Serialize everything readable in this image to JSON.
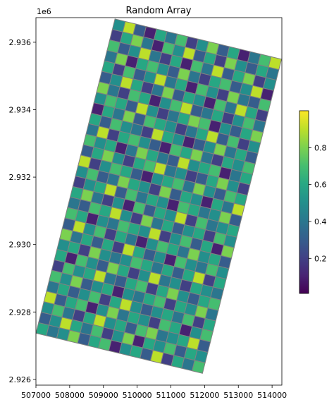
{
  "chart_data": {
    "type": "heatmap",
    "title": "Random Array",
    "y_offset_label": "1e6",
    "grid_corners": [
      [
        509343,
        2936690
      ],
      [
        514280,
        2935498
      ],
      [
        507000,
        2927372
      ]
    ],
    "xlim": [
      507000,
      514290
    ],
    "ylim": [
      2925830,
      2936730
    ],
    "xticks": [
      507000,
      508000,
      509000,
      510000,
      511000,
      512000,
      513000,
      514000
    ],
    "yticks": [
      {
        "value": 2926000,
        "label": "2.926"
      },
      {
        "value": 2928000,
        "label": "2.928"
      },
      {
        "value": 2930000,
        "label": "2.930"
      },
      {
        "value": 2932000,
        "label": "2.932"
      },
      {
        "value": 2934000,
        "label": "2.934"
      },
      {
        "value": 2936000,
        "label": "2.936"
      }
    ],
    "clim": [
      0.01,
      1.0
    ],
    "cticks": [
      0.2,
      0.4,
      0.6,
      0.8
    ],
    "colormap": "viridis",
    "edgecolor": "#808080",
    "values": [
      [
        0.5,
        0.9,
        0.3,
        0.1,
        0.6,
        0.4,
        0.7,
        0.2,
        0.5,
        0.8,
        0.3,
        0.6,
        0.1,
        0.4,
        0.7,
        0.9
      ],
      [
        0.2,
        0.6,
        0.8,
        0.4,
        0.1,
        0.7,
        0.5,
        0.9,
        0.3,
        0.6,
        0.2,
        0.8,
        0.5,
        0.3,
        0.6,
        0.4
      ],
      [
        0.7,
        0.3,
        0.5,
        0.9,
        0.4,
        0.2,
        0.6,
        0.1,
        0.7,
        0.4,
        0.9,
        0.3,
        0.6,
        0.8,
        0.2,
        0.5
      ],
      [
        0.4,
        0.8,
        0.1,
        0.6,
        0.7,
        0.5,
        0.3,
        0.8,
        0.4,
        0.2,
        0.6,
        0.7,
        0.3,
        0.5,
        0.9,
        0.1
      ],
      [
        0.6,
        0.2,
        0.7,
        0.3,
        0.5,
        0.9,
        0.4,
        0.6,
        0.1,
        0.7,
        0.5,
        0.2,
        0.8,
        0.4,
        0.3,
        0.7
      ],
      [
        0.3,
        0.5,
        0.9,
        0.6,
        0.2,
        0.4,
        0.8,
        0.3,
        0.6,
        0.5,
        0.1,
        0.7,
        0.4,
        0.9,
        0.6,
        0.2
      ],
      [
        0.8,
        0.4,
        0.2,
        0.7,
        0.6,
        0.1,
        0.5,
        0.7,
        0.9,
        0.3,
        0.4,
        0.6,
        0.2,
        0.5,
        0.7,
        0.4
      ],
      [
        0.5,
        0.7,
        0.6,
        0.3,
        0.9,
        0.5,
        0.2,
        0.4,
        0.6,
        0.8,
        0.7,
        0.1,
        0.5,
        0.3,
        0.6,
        0.8
      ],
      [
        0.1,
        0.6,
        0.4,
        0.8,
        0.3,
        0.7,
        0.6,
        0.5,
        0.2,
        0.4,
        0.6,
        0.9,
        0.3,
        0.7,
        0.2,
        0.5
      ],
      [
        0.6,
        0.3,
        0.7,
        0.5,
        0.4,
        0.2,
        0.9,
        0.6,
        0.5,
        0.1,
        0.3,
        0.5,
        0.8,
        0.4,
        0.6,
        0.3
      ],
      [
        0.4,
        0.9,
        0.2,
        0.6,
        0.7,
        0.5,
        0.3,
        0.1,
        0.7,
        0.6,
        0.8,
        0.4,
        0.2,
        0.6,
        0.5,
        0.7
      ],
      [
        0.7,
        0.5,
        0.6,
        0.1,
        0.4,
        0.8,
        0.6,
        0.4,
        0.3,
        0.9,
        0.5,
        0.6,
        0.7,
        0.1,
        0.4,
        0.6
      ],
      [
        0.3,
        0.6,
        0.8,
        0.5,
        0.2,
        0.6,
        0.7,
        0.9,
        0.4,
        0.5,
        0.2,
        0.3,
        0.6,
        0.8,
        0.5,
        0.2
      ],
      [
        0.9,
        0.2,
        0.5,
        0.7,
        0.6,
        0.3,
        0.1,
        0.5,
        0.6,
        0.7,
        0.4,
        0.8,
        0.5,
        0.3,
        0.7,
        0.6
      ],
      [
        0.5,
        0.7,
        0.3,
        0.4,
        0.8,
        0.6,
        0.5,
        0.2,
        0.8,
        0.3,
        0.6,
        0.5,
        0.1,
        0.6,
        0.4,
        0.9
      ],
      [
        0.2,
        0.5,
        0.6,
        0.9,
        0.3,
        0.7,
        0.4,
        0.6,
        0.5,
        0.1,
        0.7,
        0.6,
        0.4,
        0.5,
        0.8,
        0.3
      ],
      [
        0.6,
        0.8,
        0.4,
        0.2,
        0.5,
        0.1,
        0.7,
        0.3,
        0.6,
        0.5,
        0.9,
        0.2,
        0.7,
        0.4,
        0.5,
        0.6
      ],
      [
        0.4,
        0.3,
        0.7,
        0.6,
        0.9,
        0.5,
        0.2,
        0.8,
        0.4,
        0.6,
        0.3,
        0.5,
        0.6,
        0.2,
        0.7,
        0.5
      ],
      [
        0.7,
        0.6,
        0.1,
        0.5,
        0.4,
        0.7,
        0.6,
        0.5,
        0.9,
        0.2,
        0.5,
        0.7,
        0.3,
        0.6,
        0.1,
        0.8
      ],
      [
        0.3,
        0.9,
        0.5,
        0.7,
        0.2,
        0.6,
        0.4,
        0.1,
        0.5,
        0.7,
        0.6,
        0.4,
        0.8,
        0.5,
        0.6,
        0.3
      ],
      [
        0.8,
        0.4,
        0.6,
        0.3,
        0.6,
        0.2,
        0.9,
        0.6,
        0.3,
        0.5,
        0.1,
        0.7,
        0.5,
        0.4,
        0.7,
        0.5
      ],
      [
        0.5,
        0.6,
        0.2,
        0.8,
        0.5,
        0.4,
        0.5,
        0.7,
        0.6,
        0.4,
        0.6,
        0.3,
        0.6,
        0.9,
        0.2,
        0.6
      ],
      [
        0.6,
        0.1,
        0.7,
        0.5,
        0.3,
        0.8,
        0.6,
        0.2,
        0.5,
        0.9,
        0.4,
        0.5,
        0.2,
        0.6,
        0.5,
        0.4
      ],
      [
        0.2,
        0.7,
        0.5,
        0.6,
        0.9,
        0.4,
        0.3,
        0.6,
        0.7,
        0.2,
        0.6,
        0.8,
        0.5,
        0.3,
        0.6,
        0.7
      ],
      [
        0.7,
        0.5,
        0.8,
        0.3,
        0.5,
        0.6,
        0.1,
        0.5,
        0.4,
        0.6,
        0.7,
        0.2,
        0.6,
        0.5,
        0.8,
        0.4
      ],
      [
        0.4,
        0.6,
        0.3,
        0.5,
        0.7,
        0.2,
        0.6,
        0.9,
        0.5,
        0.3,
        0.5,
        0.6,
        0.4,
        0.7,
        0.2,
        0.6
      ],
      [
        0.9,
        0.3,
        0.6,
        0.7,
        0.1,
        0.5,
        0.8,
        0.4,
        0.6,
        0.5,
        0.2,
        0.7,
        0.6,
        0.1,
        0.5,
        0.7
      ],
      [
        0.5,
        0.7,
        0.4,
        0.2,
        0.6,
        0.9,
        0.5,
        0.6,
        0.3,
        0.7,
        0.8,
        0.4,
        0.5,
        0.6,
        0.9,
        0.3
      ],
      [
        0.3,
        0.5,
        0.9,
        0.6,
        0.4,
        0.7,
        0.2,
        0.5,
        0.8,
        0.1,
        0.6,
        0.5,
        0.7,
        0.3,
        0.6,
        0.5
      ],
      [
        0.6,
        0.4,
        0.5,
        0.8,
        0.3,
        0.6,
        0.7,
        0.1,
        0.5,
        0.6,
        0.3,
        0.9,
        0.2,
        0.6,
        0.4,
        0.7
      ]
    ]
  }
}
